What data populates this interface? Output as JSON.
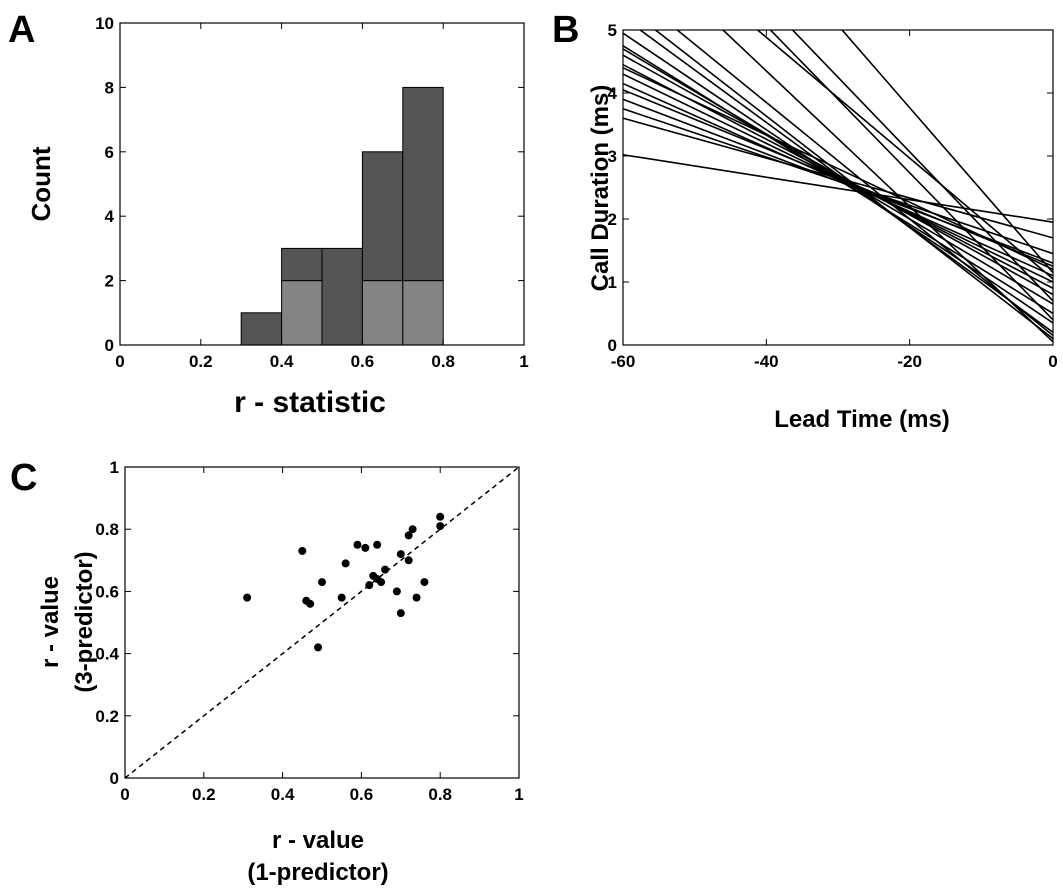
{
  "panels": {
    "a": "A",
    "b": "B",
    "c": "C"
  },
  "chart_data": [
    {
      "id": "A",
      "type": "bar",
      "subtype": "stacked-histogram",
      "xlabel": "r - statistic",
      "ylabel": "Count",
      "xlim": [
        0,
        1
      ],
      "ylim": [
        0,
        10
      ],
      "xticks": [
        0,
        0.2,
        0.4,
        0.6,
        0.8,
        1
      ],
      "xtick_labels": [
        "0",
        "0.2",
        "0.4",
        "0.6",
        "0.8",
        "1"
      ],
      "yticks": [
        0,
        2,
        4,
        6,
        8,
        10
      ],
      "ytick_labels": [
        "0",
        "2",
        "4",
        "6",
        "8",
        "10"
      ],
      "bin_edges": [
        0.3,
        0.4,
        0.5,
        0.6,
        0.7,
        0.8
      ],
      "series": [
        {
          "values": [
            0,
            2,
            0,
            2,
            2
          ],
          "color": "#848484"
        },
        {
          "values": [
            1,
            1,
            3,
            4,
            6
          ],
          "color": "#555555"
        }
      ],
      "grid": false
    },
    {
      "id": "B",
      "type": "line",
      "xlabel": "Lead Time (ms)",
      "ylabel": "Call Duration (ms)",
      "xlim": [
        -60,
        0
      ],
      "ylim": [
        0,
        5
      ],
      "xticks": [
        -60,
        -40,
        -20,
        0
      ],
      "xtick_labels": [
        "-60",
        "-40",
        "-20",
        "0"
      ],
      "yticks": [
        0,
        1,
        2,
        3,
        4,
        5
      ],
      "ytick_labels": [
        "0",
        "1",
        "2",
        "3",
        "4",
        "5"
      ],
      "color": "#000000",
      "lines": [
        {
          "y0": 3.02,
          "y1": 1.95
        },
        {
          "y0": 3.6,
          "y1": 1.7
        },
        {
          "y0": 3.75,
          "y1": 1.45
        },
        {
          "y0": 3.9,
          "y1": 1.3
        },
        {
          "y0": 4.05,
          "y1": 1.25
        },
        {
          "y0": 4.15,
          "y1": 1.1
        },
        {
          "y0": 4.3,
          "y1": 1.0
        },
        {
          "y0": 4.4,
          "y1": 1.2
        },
        {
          "y0": 4.45,
          "y1": 0.9
        },
        {
          "y0": 4.6,
          "y1": 0.8
        },
        {
          "y0": 4.7,
          "y1": 0.65
        },
        {
          "y0": 4.75,
          "y1": 0.5
        },
        {
          "y0": 4.95,
          "y1": 0.35
        },
        {
          "y0": 5.2,
          "y1": 0.2
        },
        {
          "y0": 5.4,
          "y1": 0.1
        },
        {
          "y0": 5.7,
          "y1": 0.15
        },
        {
          "y0": 6.5,
          "y1": 0.05
        },
        {
          "y0": 6.8,
          "y1": 1.05
        },
        {
          "y0": 7.4,
          "y1": 0.4
        },
        {
          "y0": 7.8,
          "y1": 0.7
        },
        {
          "y0": 9.0,
          "y1": 1.15
        }
      ],
      "grid": false
    },
    {
      "id": "C",
      "type": "scatter",
      "xlabel": [
        "r - value",
        "(1-predictor)"
      ],
      "ylabel": [
        "r - value",
        "(3-predictor)"
      ],
      "xlim": [
        0,
        1
      ],
      "ylim": [
        0,
        1
      ],
      "xticks": [
        0,
        0.2,
        0.4,
        0.6,
        0.8,
        1
      ],
      "xtick_labels": [
        "0",
        "0.2",
        "0.4",
        "0.6",
        "0.8",
        "1"
      ],
      "yticks": [
        0,
        0.2,
        0.4,
        0.6,
        0.8,
        1
      ],
      "ytick_labels": [
        "0",
        "0.2",
        "0.4",
        "0.6",
        "0.8",
        "1"
      ],
      "reference_line": {
        "x": [
          0,
          1
        ],
        "y": [
          0,
          1
        ],
        "style": "dashed"
      },
      "x": [
        0.31,
        0.45,
        0.46,
        0.47,
        0.49,
        0.5,
        0.55,
        0.56,
        0.59,
        0.61,
        0.62,
        0.63,
        0.64,
        0.64,
        0.65,
        0.66,
        0.69,
        0.7,
        0.7,
        0.72,
        0.72,
        0.73,
        0.74,
        0.76,
        0.8,
        0.8
      ],
      "y": [
        0.58,
        0.73,
        0.57,
        0.56,
        0.42,
        0.63,
        0.58,
        0.69,
        0.75,
        0.74,
        0.62,
        0.65,
        0.75,
        0.64,
        0.63,
        0.67,
        0.6,
        0.72,
        0.53,
        0.7,
        0.78,
        0.8,
        0.58,
        0.63,
        0.84,
        0.81
      ],
      "grid": false
    }
  ]
}
